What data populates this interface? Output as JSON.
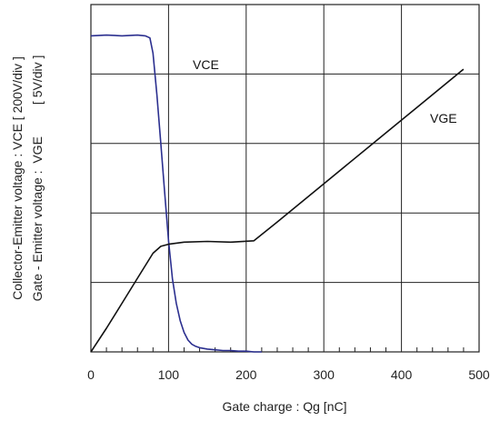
{
  "chart_data": {
    "type": "line",
    "xlabel": "Gate charge : Qg [nC]",
    "ylabel": {
      "vce_line": "Collector-Emitter voltage : VCE [ 200V/div ]",
      "vge_line": "Gate - Emitter voltage :  VGE         [ 5V/div ]"
    },
    "xlim": [
      0,
      500
    ],
    "ylim_divisions": [
      0,
      5
    ],
    "x_ticks": [
      "0",
      "100",
      "200",
      "300",
      "400",
      "500"
    ],
    "grid": true,
    "series": [
      {
        "name": "VCE",
        "color": "#2b2f8f",
        "unit_per_div": "200V/div",
        "x": [
          0,
          20,
          40,
          60,
          70,
          76,
          80,
          85,
          90,
          95,
          100,
          105,
          110,
          115,
          120,
          125,
          130,
          135,
          140,
          150,
          160,
          170,
          180,
          190,
          200,
          210,
          220
        ],
        "y": [
          4.55,
          4.56,
          4.55,
          4.56,
          4.55,
          4.52,
          4.3,
          3.7,
          3.0,
          2.3,
          1.6,
          1.05,
          0.7,
          0.45,
          0.28,
          0.17,
          0.11,
          0.08,
          0.06,
          0.04,
          0.03,
          0.02,
          0.02,
          0.01,
          0.01,
          0.0,
          0.0
        ]
      },
      {
        "name": "VGE",
        "color": "#111111",
        "unit_per_div": "5V/div",
        "x": [
          0,
          20,
          40,
          60,
          80,
          90,
          100,
          120,
          150,
          180,
          210,
          240,
          300,
          360,
          420,
          480
        ],
        "y": [
          0.0,
          0.34,
          0.7,
          1.06,
          1.42,
          1.52,
          1.55,
          1.58,
          1.59,
          1.58,
          1.6,
          1.87,
          2.42,
          2.97,
          3.52,
          4.07
        ]
      }
    ]
  }
}
